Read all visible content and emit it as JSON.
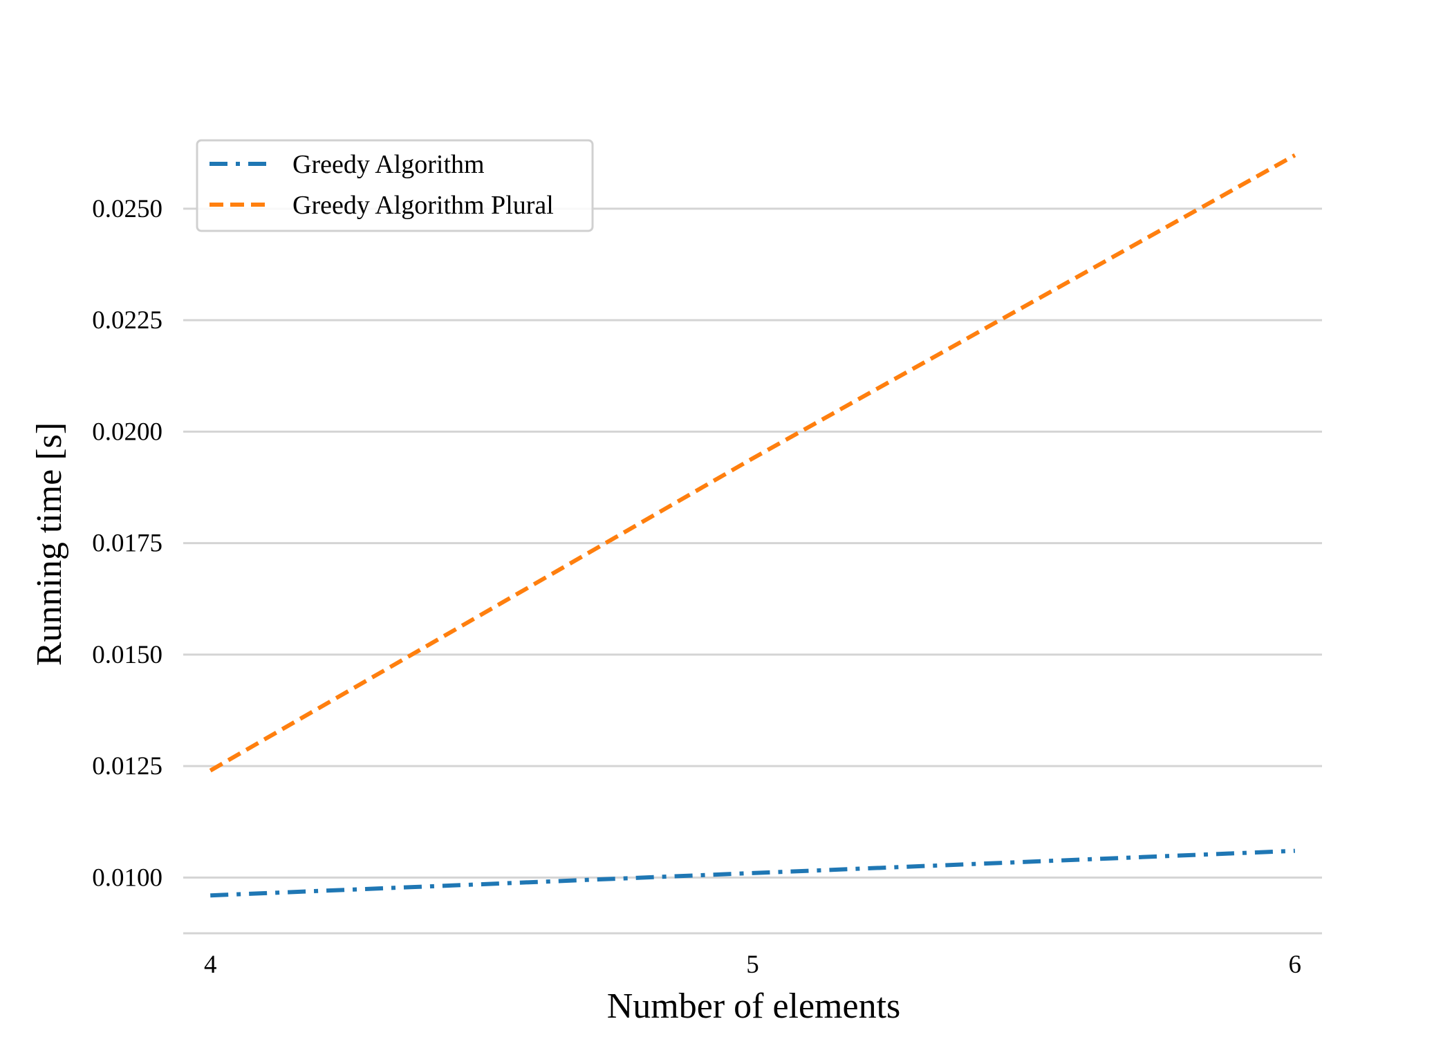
{
  "chart_data": {
    "type": "line",
    "title": "",
    "xlabel": "Number of elements",
    "ylabel": "Running time [s]",
    "x": [
      4,
      5,
      6
    ],
    "xlim": [
      3.95,
      6.05
    ],
    "ylim": [
      0.00875,
      0.0272
    ],
    "x_ticks": [
      4,
      5,
      6
    ],
    "x_tick_labels": [
      "4",
      "5",
      "6"
    ],
    "y_ticks": [
      0.01,
      0.0125,
      0.015,
      0.0175,
      0.02,
      0.0225,
      0.025
    ],
    "y_tick_labels": [
      "0.0100",
      "0.0125",
      "0.0150",
      "0.0175",
      "0.0200",
      "0.0225",
      "0.0250"
    ],
    "grid": "horizontal",
    "legend_position": "top-left",
    "series": [
      {
        "name": "Greedy Algorithm",
        "values": [
          0.0096,
          0.0101,
          0.0106
        ],
        "color": "#1f77b4",
        "line_style": "dashdot"
      },
      {
        "name": "Greedy Algorithm Plural",
        "values": [
          0.0124,
          0.0194,
          0.0262
        ],
        "color": "#ff7f0e",
        "line_style": "dashed"
      }
    ]
  }
}
